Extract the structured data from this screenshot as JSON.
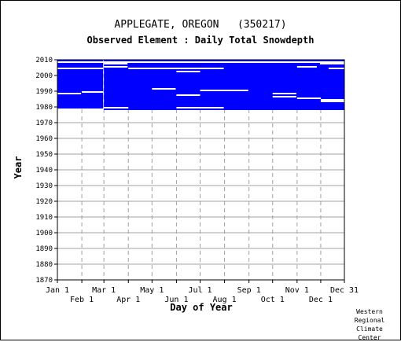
{
  "page": {
    "title": "APPLEGATE, OREGON   (350217)",
    "subtitle": "Observed Element : Daily Total Snowdepth",
    "credit": [
      "Western",
      "Regional",
      "Climate",
      "Center"
    ]
  },
  "chart_data": {
    "type": "heatmap",
    "title": "APPLEGATE, OREGON   (350217)",
    "subtitle": "Observed Element : Daily Total Snowdepth",
    "xlabel": "Day of Year",
    "ylabel": "Year",
    "x_ticks_top_row": [
      "Jan 1",
      "Mar 1",
      "May 1",
      "Jul 1",
      "Sep 1",
      "Nov 1",
      "Dec 31"
    ],
    "x_ticks_bottom_row": [
      "Feb 1",
      "Apr 1",
      "Jun 1",
      "Aug 1",
      "Oct 1",
      "Dec 1"
    ],
    "x_tick_days": {
      "Jan 1": 1,
      "Feb 1": 32,
      "Mar 1": 60,
      "Apr 1": 91,
      "May 1": 121,
      "Jun 1": 152,
      "Jul 1": 182,
      "Aug 1": 213,
      "Sep 1": 244,
      "Oct 1": 274,
      "Nov 1": 305,
      "Dec 1": 335,
      "Dec 31": 365
    },
    "xlim": [
      1,
      365
    ],
    "y_ticks": [
      2010,
      2000,
      1990,
      1980,
      1970,
      1960,
      1950,
      1940,
      1930,
      1920,
      1910,
      1900,
      1890,
      1880,
      1870
    ],
    "ylim": [
      1870,
      2010
    ],
    "grid": true,
    "colors": {
      "observed": "#0000ff",
      "missing": "#ffffff",
      "grid": "#a0a0a0",
      "text": "#000000"
    },
    "observed_spans": [
      {
        "years": [
          1978,
          2009
        ],
        "days": [
          60,
          365
        ],
        "label": "observed"
      },
      {
        "years": [
          1979,
          2009
        ],
        "days": [
          1,
          59
        ],
        "label": "observed"
      }
    ],
    "missing_gaps": [
      {
        "year": 2008,
        "days": [
          1,
          365
        ]
      },
      {
        "year": 2007,
        "days": [
          60,
          90
        ]
      },
      {
        "year": 2007,
        "days": [
          334,
          365
        ]
      },
      {
        "year": 2005,
        "days": [
          60,
          90
        ]
      },
      {
        "year": 2005,
        "days": [
          305,
          330
        ]
      },
      {
        "year": 2004,
        "days": [
          1,
          59
        ]
      },
      {
        "year": 2004,
        "days": [
          91,
          212
        ]
      },
      {
        "year": 2004,
        "days": [
          345,
          365
        ]
      },
      {
        "year": 2002,
        "days": [
          152,
          182
        ]
      },
      {
        "year": 1991,
        "days": [
          121,
          151
        ]
      },
      {
        "year": 1990,
        "days": [
          182,
          243
        ]
      },
      {
        "year": 1989,
        "days": [
          32,
          59
        ]
      },
      {
        "year": 1988,
        "days": [
          1,
          31
        ]
      },
      {
        "year": 1988,
        "days": [
          274,
          304
        ]
      },
      {
        "year": 1987,
        "days": [
          152,
          182
        ]
      },
      {
        "year": 1986,
        "days": [
          274,
          304
        ]
      },
      {
        "year": 1985,
        "days": [
          305,
          335
        ]
      },
      {
        "year": 1984,
        "days": [
          335,
          365
        ]
      },
      {
        "year": 1983,
        "days": [
          335,
          365
        ]
      },
      {
        "year": 1979,
        "days": [
          60,
          91
        ]
      },
      {
        "year": 1979,
        "days": [
          152,
          212
        ]
      }
    ]
  }
}
